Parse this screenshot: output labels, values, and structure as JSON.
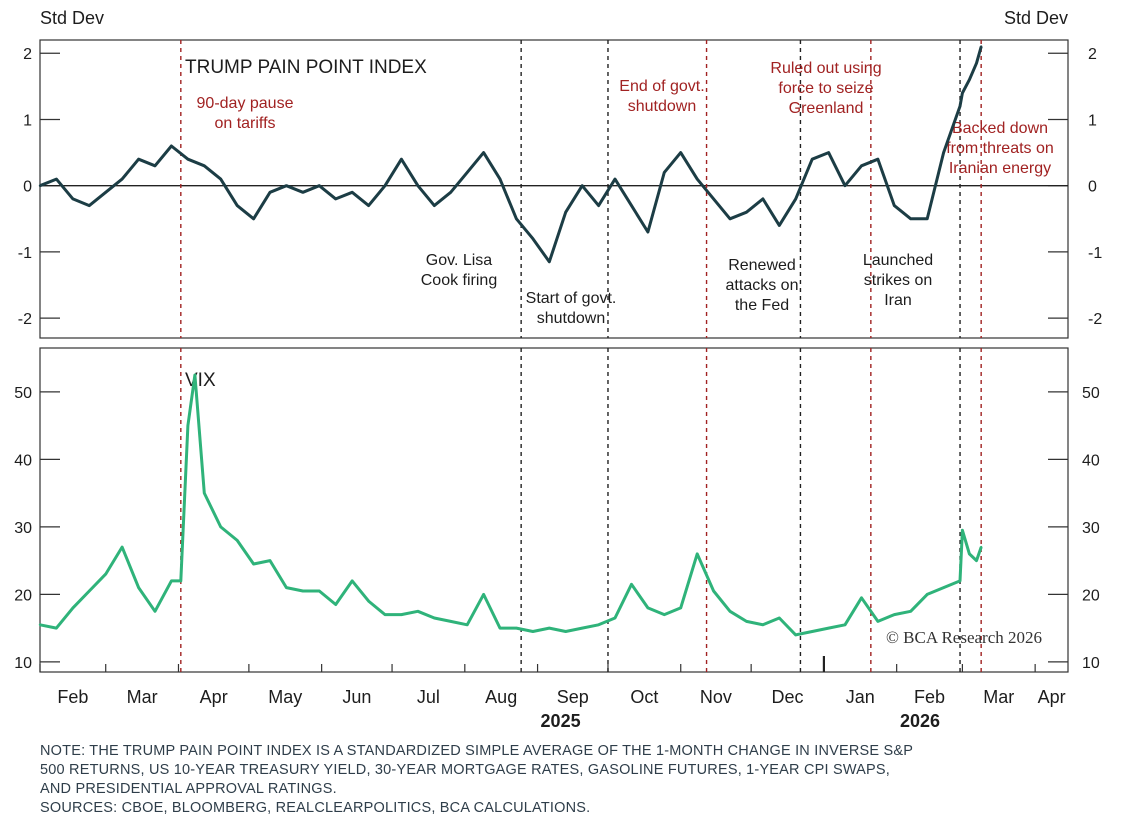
{
  "colors": {
    "pain_line": "#1c3d45",
    "vix_line": "#2fb37a",
    "event_line": "#a12222",
    "event_text": "#a12222",
    "neutral_line": "#222222",
    "note_text": "#2f3e4a"
  },
  "chart_data": [
    {
      "type": "line",
      "title": "TRUMP PAIN POINT INDEX",
      "ylabel_left": "Std Dev",
      "ylabel_right": "Std Dev",
      "ylim": [
        -2.3,
        2.2
      ],
      "yticks": [
        -2,
        -1,
        0,
        1,
        2
      ],
      "ytick_labels": [
        "-2",
        "-1",
        "0",
        "1",
        "2"
      ],
      "zero_line": true,
      "series": [
        {
          "name": "TRUMP PAIN POINT INDEX",
          "x": [
            "2025-02-01",
            "2025-02-08",
            "2025-02-15",
            "2025-02-22",
            "2025-03-01",
            "2025-03-08",
            "2025-03-15",
            "2025-03-22",
            "2025-03-29",
            "2025-04-05",
            "2025-04-12",
            "2025-04-19",
            "2025-04-26",
            "2025-05-03",
            "2025-05-10",
            "2025-05-17",
            "2025-05-24",
            "2025-05-31",
            "2025-06-07",
            "2025-06-14",
            "2025-06-21",
            "2025-06-28",
            "2025-07-05",
            "2025-07-12",
            "2025-07-19",
            "2025-07-26",
            "2025-08-02",
            "2025-08-09",
            "2025-08-16",
            "2025-08-23",
            "2025-08-30",
            "2025-09-06",
            "2025-09-13",
            "2025-09-20",
            "2025-09-27",
            "2025-10-04",
            "2025-10-11",
            "2025-10-18",
            "2025-10-25",
            "2025-11-01",
            "2025-11-08",
            "2025-11-15",
            "2025-11-22",
            "2025-11-29",
            "2025-12-06",
            "2025-12-13",
            "2025-12-20",
            "2025-12-27",
            "2026-01-03",
            "2026-01-10",
            "2026-01-17",
            "2026-01-24",
            "2026-01-31",
            "2026-02-07",
            "2026-02-14",
            "2026-02-21",
            "2026-02-28",
            "2026-03-01",
            "2026-03-04",
            "2026-03-07",
            "2026-03-09"
          ],
          "values": [
            0.0,
            0.1,
            -0.2,
            -0.3,
            -0.1,
            0.1,
            0.4,
            0.3,
            0.6,
            0.4,
            0.3,
            0.1,
            -0.3,
            -0.5,
            -0.1,
            0.0,
            -0.1,
            0.0,
            -0.2,
            -0.1,
            -0.3,
            0.0,
            0.4,
            0.0,
            -0.3,
            -0.1,
            0.2,
            0.5,
            0.1,
            -0.5,
            -0.8,
            -1.15,
            -0.4,
            0.0,
            -0.3,
            0.1,
            -0.3,
            -0.7,
            0.2,
            0.5,
            0.1,
            -0.2,
            -0.5,
            -0.4,
            -0.2,
            -0.6,
            -0.2,
            0.4,
            0.5,
            0.0,
            0.3,
            0.4,
            -0.3,
            -0.5,
            -0.5,
            0.5,
            1.2,
            1.4,
            1.6,
            1.85,
            2.1
          ]
        }
      ],
      "events": [
        {
          "date": "2025-04-02",
          "label": [
            "90-day pause",
            "on tariffs"
          ],
          "style": "red",
          "label_position": "top"
        },
        {
          "date": "2025-08-25",
          "label": [
            "Gov. Lisa",
            "Cook firing"
          ],
          "style": "dark",
          "label_position": "bottom-left"
        },
        {
          "date": "2025-10-01",
          "label": [
            "Start of govt.",
            "shutdown"
          ],
          "style": "dark",
          "label_position": "bottom"
        },
        {
          "date": "2025-11-12",
          "label": [
            "End of govt.",
            "shutdown"
          ],
          "style": "red",
          "label_position": "top"
        },
        {
          "date": "2025-12-22",
          "label": [
            "Renewed",
            "attacks on",
            "the Fed"
          ],
          "style": "dark",
          "label_position": "bottom"
        },
        {
          "date": "2026-01-21",
          "label": [
            "Ruled out using",
            "force to seize",
            "Greenland"
          ],
          "style": "red",
          "label_position": "top"
        },
        {
          "date": "2026-02-28",
          "label": [
            "Launched",
            "strikes on",
            "Iran"
          ],
          "style": "dark",
          "label_position": "bottom-left"
        },
        {
          "date": "2026-03-09",
          "label": [
            "Backed down",
            "from threats on",
            "Iranian energy"
          ],
          "style": "red",
          "label_position": "right"
        }
      ]
    },
    {
      "type": "line",
      "title": "VIX",
      "ylim": [
        8.5,
        56.5
      ],
      "yticks": [
        10,
        20,
        30,
        40,
        50
      ],
      "ytick_labels": [
        "10",
        "20",
        "30",
        "40",
        "50"
      ],
      "series": [
        {
          "name": "VIX",
          "x": [
            "2025-02-01",
            "2025-02-08",
            "2025-02-15",
            "2025-02-22",
            "2025-03-01",
            "2025-03-08",
            "2025-03-15",
            "2025-03-22",
            "2025-03-29",
            "2025-04-02",
            "2025-04-05",
            "2025-04-08",
            "2025-04-12",
            "2025-04-19",
            "2025-04-26",
            "2025-05-03",
            "2025-05-10",
            "2025-05-17",
            "2025-05-24",
            "2025-05-31",
            "2025-06-07",
            "2025-06-14",
            "2025-06-21",
            "2025-06-28",
            "2025-07-05",
            "2025-07-12",
            "2025-07-19",
            "2025-07-26",
            "2025-08-02",
            "2025-08-09",
            "2025-08-16",
            "2025-08-23",
            "2025-08-30",
            "2025-09-06",
            "2025-09-13",
            "2025-09-20",
            "2025-09-27",
            "2025-10-04",
            "2025-10-11",
            "2025-10-18",
            "2025-10-25",
            "2025-11-01",
            "2025-11-08",
            "2025-11-15",
            "2025-11-22",
            "2025-11-29",
            "2025-12-06",
            "2025-12-13",
            "2025-12-20",
            "2025-12-27",
            "2026-01-03",
            "2026-01-10",
            "2026-01-17",
            "2026-01-24",
            "2026-01-31",
            "2026-02-07",
            "2026-02-14",
            "2026-02-21",
            "2026-02-28",
            "2026-03-01",
            "2026-03-04",
            "2026-03-07",
            "2026-03-09"
          ],
          "values": [
            15.5,
            15.0,
            18.0,
            20.5,
            23.0,
            27.0,
            21.0,
            17.5,
            22.0,
            22.0,
            45.0,
            52.5,
            35.0,
            30.0,
            28.0,
            24.5,
            25.0,
            21.0,
            20.5,
            20.5,
            18.5,
            22.0,
            19.0,
            17.0,
            17.0,
            17.5,
            16.5,
            16.0,
            15.5,
            20.0,
            15.0,
            15.0,
            14.5,
            15.0,
            14.5,
            15.0,
            15.5,
            16.5,
            21.5,
            18.0,
            17.0,
            18.0,
            26.0,
            20.5,
            17.5,
            16.0,
            15.5,
            16.5,
            14.0,
            14.5,
            15.0,
            15.5,
            19.5,
            16.0,
            17.0,
            17.5,
            20.0,
            21.0,
            22.0,
            29.5,
            26.0,
            25.0,
            27.0
          ]
        }
      ],
      "credit": "© BCA Research 2026"
    }
  ],
  "x_axis": {
    "months": [
      "Feb",
      "Mar",
      "Apr",
      "May",
      "Jun",
      "Jul",
      "Aug",
      "Sep",
      "Oct",
      "Nov",
      "Dec",
      "Jan",
      "Feb",
      "Mar",
      "Apr"
    ],
    "years": [
      "2025",
      "2026"
    ],
    "range": [
      "2025-02-01",
      "2026-04-15"
    ]
  },
  "note": {
    "lines": [
      "NOTE: THE TRUMP PAIN POINT INDEX IS A STANDARDIZED SIMPLE AVERAGE OF THE 1-MONTH CHANGE IN INVERSE S&P",
      "500 RETURNS, US 10-YEAR TREASURY YIELD, 30-YEAR MORTGAGE RATES, GASOLINE FUTURES, 1-YEAR CPI SWAPS,",
      "AND PRESIDENTIAL APPROVAL RATINGS.",
      "SOURCES: CBOE, BLOOMBERG, REALCLEARPOLITICS, BCA CALCULATIONS."
    ]
  }
}
